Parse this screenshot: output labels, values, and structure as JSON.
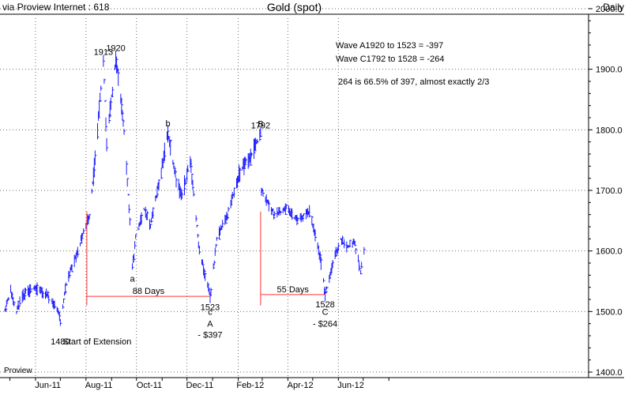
{
  "header": {
    "source": "via Proview Internet : 618",
    "title": "Gold (spot)",
    "frequency": "Daily"
  },
  "watermark": "Proview",
  "colors": {
    "price": "#1a1aff",
    "marker": "#ff3333",
    "grid": "#6a6a6a",
    "text": "#000000"
  },
  "notes": {
    "wave_a": "Wave A1920 to 1523   = -397",
    "wave_c": "Wave C1792 to 1528  = -264",
    "ratio": "264 is 66.5% of 397, almost exactly 2/3"
  },
  "chart_data": {
    "type": "ohlc",
    "title": "Gold (spot)",
    "frequency": "Daily",
    "y_axis_side": "right",
    "ylim": [
      1400,
      2000
    ],
    "y_ticks": [
      "1400.0",
      "1500.0",
      "1600.0",
      "1700.0",
      "1800.0",
      "1900.0",
      "2000.0"
    ],
    "x_ticks": [
      "Jun-11",
      "Aug-11",
      "Oct-11",
      "Dec-11",
      "Feb-12",
      "Apr-12",
      "Jun-12"
    ],
    "grid": true,
    "series": [
      {
        "price_anchors": [
          {
            "date": "2011-04-25",
            "price": 1505
          },
          {
            "date": "2011-05-02",
            "price": 1535
          },
          {
            "date": "2011-05-09",
            "price": 1500
          },
          {
            "date": "2011-05-16",
            "price": 1525
          },
          {
            "date": "2011-05-30",
            "price": 1540
          },
          {
            "date": "2011-06-13",
            "price": 1530
          },
          {
            "date": "2011-06-27",
            "price": 1505
          },
          {
            "date": "2011-07-01",
            "price": 1485
          },
          {
            "date": "2011-07-08",
            "price": 1545
          },
          {
            "date": "2011-07-22",
            "price": 1600
          },
          {
            "date": "2011-08-05",
            "price": 1660
          },
          {
            "date": "2011-08-12",
            "price": 1750
          },
          {
            "date": "2011-08-22",
            "price": 1913
          },
          {
            "date": "2011-08-26",
            "price": 1780
          },
          {
            "date": "2011-09-06",
            "price": 1920
          },
          {
            "date": "2011-09-16",
            "price": 1800
          },
          {
            "date": "2011-09-23",
            "price": 1650
          },
          {
            "date": "2011-09-26",
            "price": 1570
          },
          {
            "date": "2011-09-30",
            "price": 1620
          },
          {
            "date": "2011-10-10",
            "price": 1670
          },
          {
            "date": "2011-10-18",
            "price": 1640
          },
          {
            "date": "2011-11-08",
            "price": 1795
          },
          {
            "date": "2011-11-18",
            "price": 1720
          },
          {
            "date": "2011-11-25",
            "price": 1690
          },
          {
            "date": "2011-12-05",
            "price": 1750
          },
          {
            "date": "2011-12-16",
            "price": 1600
          },
          {
            "date": "2011-12-29",
            "price": 1523
          },
          {
            "date": "2012-01-06",
            "price": 1620
          },
          {
            "date": "2012-01-20",
            "price": 1665
          },
          {
            "date": "2012-02-03",
            "price": 1730
          },
          {
            "date": "2012-02-17",
            "price": 1760
          },
          {
            "date": "2012-02-28",
            "price": 1792
          },
          {
            "date": "2012-02-29",
            "price": 1700
          },
          {
            "date": "2012-03-15",
            "price": 1660
          },
          {
            "date": "2012-03-30",
            "price": 1670
          },
          {
            "date": "2012-04-13",
            "price": 1650
          },
          {
            "date": "2012-04-27",
            "price": 1665
          },
          {
            "date": "2012-05-10",
            "price": 1590
          },
          {
            "date": "2012-05-16",
            "price": 1528
          },
          {
            "date": "2012-05-25",
            "price": 1580
          },
          {
            "date": "2012-06-04",
            "price": 1620
          },
          {
            "date": "2012-06-11",
            "price": 1605
          },
          {
            "date": "2012-06-20",
            "price": 1615
          },
          {
            "date": "2012-06-28",
            "price": 1565
          },
          {
            "date": "2012-07-02",
            "price": 1600
          }
        ]
      }
    ],
    "annotations": [
      {
        "text": "1913",
        "date": "2011-08-22",
        "price": 1913,
        "place": "above"
      },
      {
        "text": "1920",
        "date": "2011-09-06",
        "price": 1920,
        "place": "above"
      },
      {
        "text": "1480",
        "date": "2011-07-01",
        "price": 1485,
        "place": "below"
      },
      {
        "text": "Start of Extension",
        "date": "2011-07-04",
        "price": 1485,
        "place": "below-right"
      },
      {
        "text": "a",
        "date": "2011-09-26",
        "price": 1570,
        "place": "below"
      },
      {
        "text": "b",
        "date": "2011-11-08",
        "price": 1795,
        "place": "above"
      },
      {
        "text": "1523",
        "date": "2011-12-29",
        "price": 1523,
        "place": "below"
      },
      {
        "text": "c",
        "date": "2011-12-29",
        "price": 1500,
        "place": "label"
      },
      {
        "text": "A",
        "date": "2011-12-29",
        "price": 1480,
        "place": "label"
      },
      {
        "text": "- $397",
        "date": "2011-12-29",
        "price": 1462,
        "place": "label"
      },
      {
        "text": "B",
        "date": "2012-02-28",
        "price": 1810,
        "place": "label"
      },
      {
        "text": "1792",
        "date": "2012-02-28",
        "price": 1792,
        "place": "above"
      },
      {
        "text": "1528",
        "date": "2012-05-16",
        "price": 1528,
        "place": "below"
      },
      {
        "text": "C",
        "date": "2012-05-16",
        "price": 1500,
        "place": "label"
      },
      {
        "text": "- $264",
        "date": "2012-05-16",
        "price": 1480,
        "place": "label"
      }
    ],
    "duration_markers": [
      {
        "label": "88 Days",
        "start_date": "2011-08-02",
        "end_date": "2011-12-29",
        "price": 1525,
        "vertical_from": 1665,
        "vertical_to": 1510
      },
      {
        "label": "55 Days",
        "start_date": "2012-02-28",
        "end_date": "2012-05-16",
        "price": 1528,
        "vertical_from": 1665,
        "vertical_to": 1510
      }
    ]
  }
}
